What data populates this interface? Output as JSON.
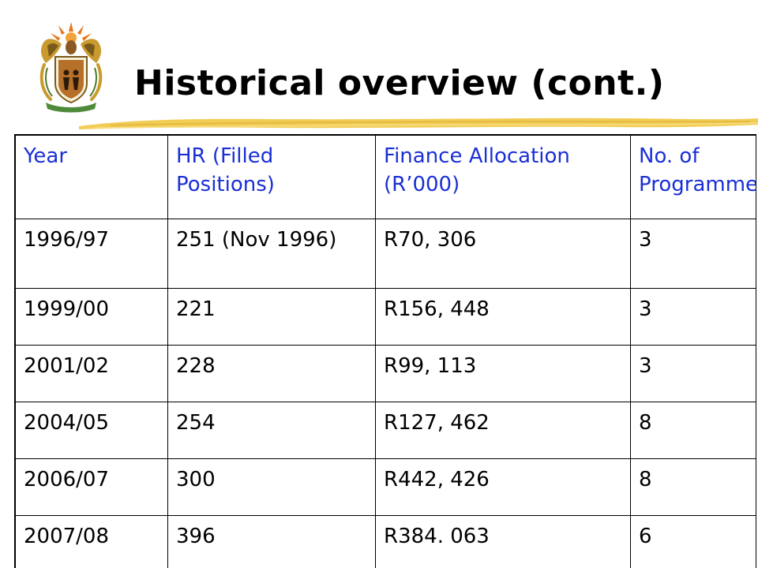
{
  "slide": {
    "title": "Historical overview (cont.)",
    "logo_icon": "coat-of-arms-icon",
    "accent_colors": {
      "header_text": "#1a2fd6",
      "brush_stroke": "#f2cd55"
    }
  },
  "table": {
    "headers": [
      "Year",
      "HR (Filled Positions)",
      "Finance Allocation (R’000)",
      "No. of Programmes"
    ],
    "rows": [
      [
        "1996/97",
        "251 (Nov 1996)",
        "R70, 306",
        "3"
      ],
      [
        "1999/00",
        "221",
        "R156, 448",
        "3"
      ],
      [
        "2001/02",
        "228",
        "R99, 113",
        "3"
      ],
      [
        "2004/05",
        "254",
        "R127, 462",
        "8"
      ],
      [
        "2006/07",
        "300",
        "R442, 426",
        "8"
      ],
      [
        "2007/08",
        "396",
        "R384. 063",
        "6"
      ]
    ]
  }
}
